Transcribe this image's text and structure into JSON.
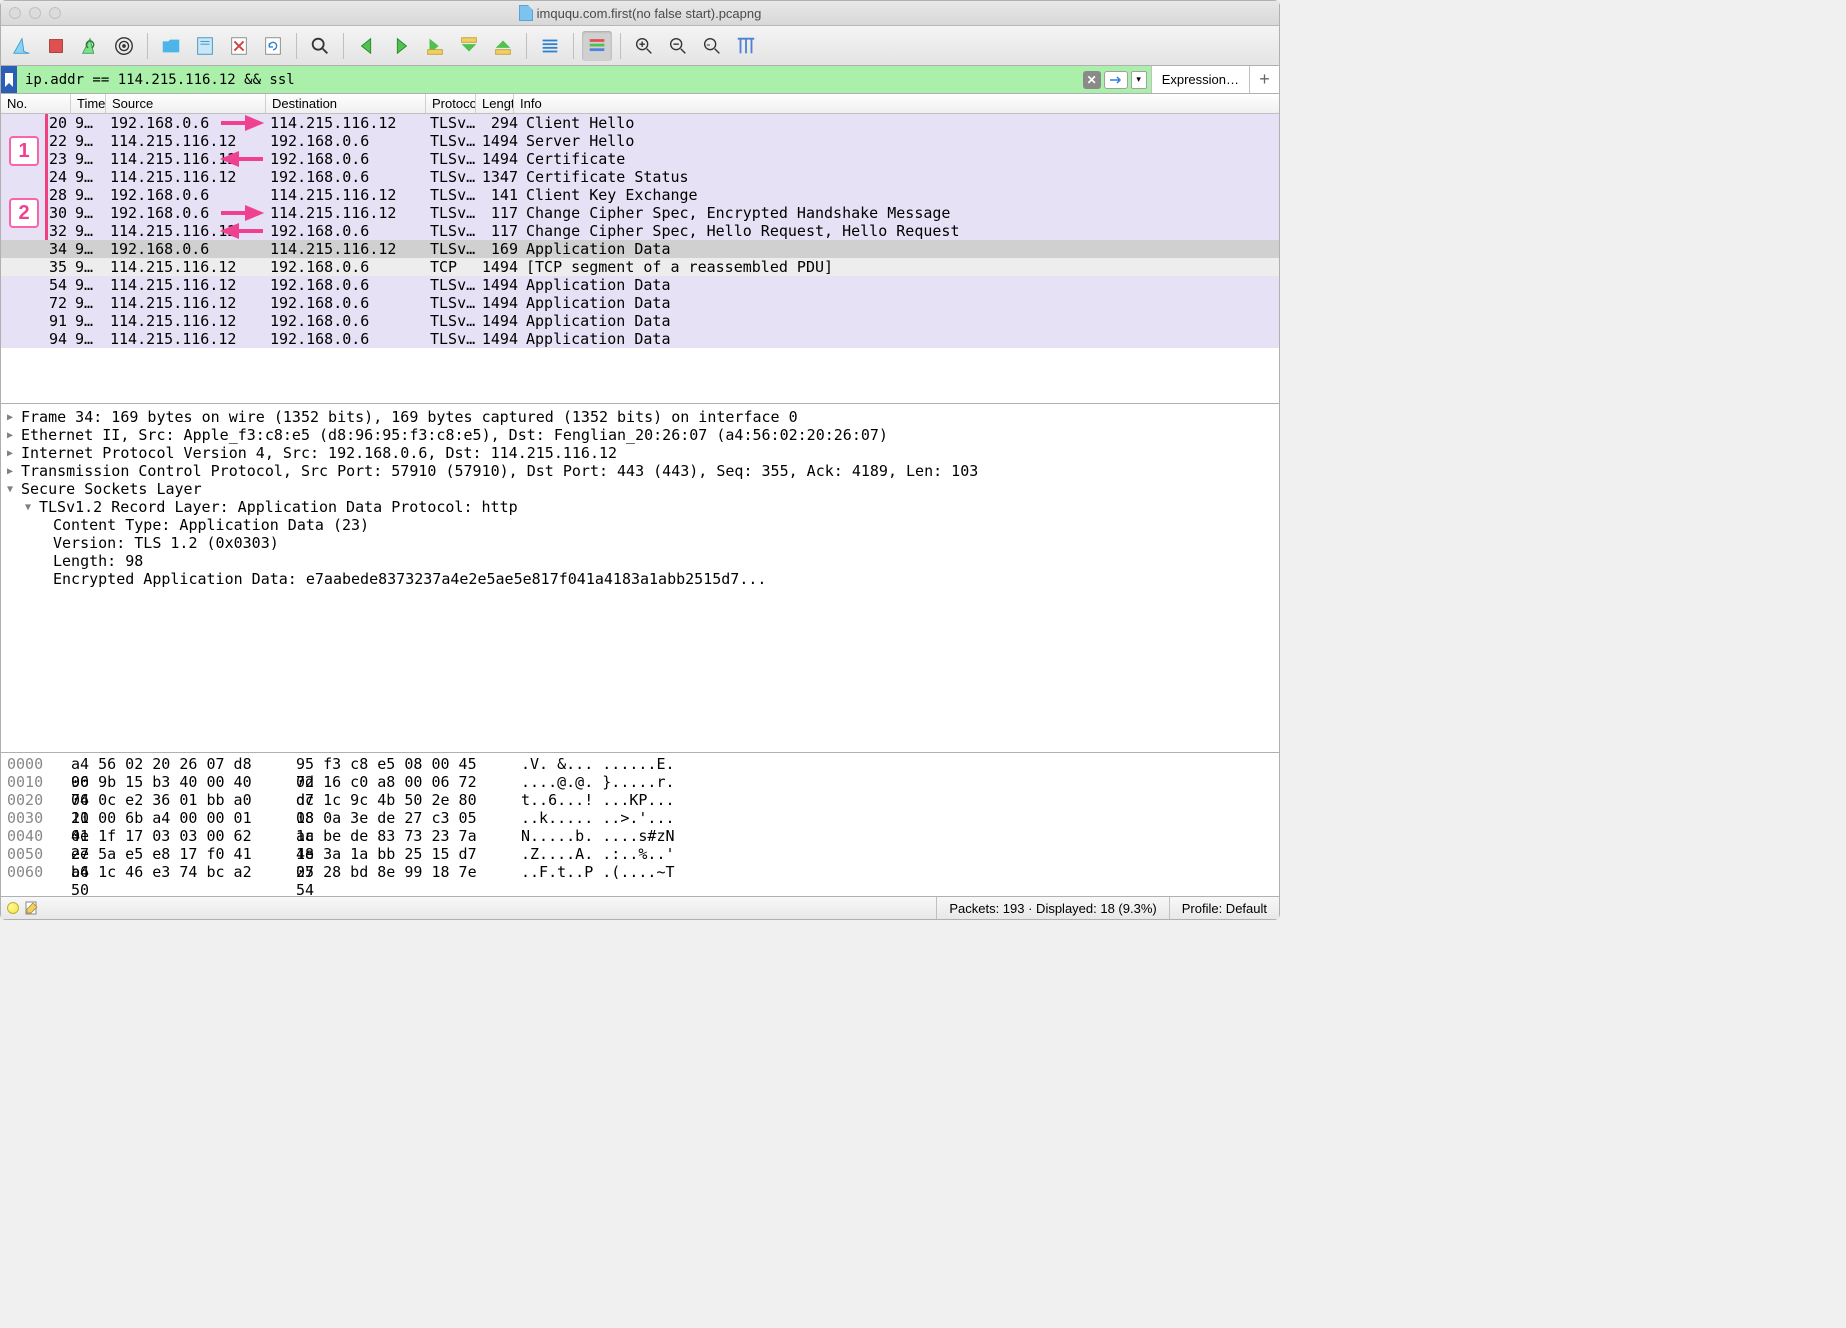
{
  "window": {
    "title": "imququ.com.first(no false start).pcapng"
  },
  "filter": {
    "value": "ip.addr == 114.215.116.12 && ssl",
    "expression_label": "Expression…"
  },
  "columns": {
    "no": "No.",
    "time": "Time",
    "source": "Source",
    "destination": "Destination",
    "protocol": "Protocol",
    "length": "Length",
    "info": "Info"
  },
  "column_widths": {
    "no": 70,
    "time": 35,
    "source": 160,
    "destination": 160,
    "protocol": 50,
    "length": 46
  },
  "annotations": {
    "badge1": "1",
    "badge2": "2",
    "arrow_color": "#f04090",
    "vline_color": "#ef4080"
  },
  "packets": [
    {
      "no": "20",
      "time": "9…",
      "src": "192.168.0.6",
      "dst": "114.215.116.12",
      "proto": "TLSv…",
      "len": "294",
      "info": "Client Hello",
      "cls": "purple",
      "group": 1,
      "arrow": "right"
    },
    {
      "no": "22",
      "time": "9…",
      "src": "114.215.116.12",
      "dst": "192.168.0.6",
      "proto": "TLSv…",
      "len": "1494",
      "info": "Server Hello",
      "cls": "purple",
      "group": 1
    },
    {
      "no": "23",
      "time": "9…",
      "src": "114.215.116.12",
      "dst": "192.168.0.6",
      "proto": "TLSv…",
      "len": "1494",
      "info": "Certificate",
      "cls": "purple",
      "group": 1,
      "arrow": "left"
    },
    {
      "no": "24",
      "time": "9…",
      "src": "114.215.116.12",
      "dst": "192.168.0.6",
      "proto": "TLSv…",
      "len": "1347",
      "info": "Certificate Status",
      "cls": "purple",
      "group": 1
    },
    {
      "no": "28",
      "time": "9…",
      "src": "192.168.0.6",
      "dst": "114.215.116.12",
      "proto": "TLSv…",
      "len": "141",
      "info": "Client Key Exchange",
      "cls": "purple",
      "group": 2
    },
    {
      "no": "30",
      "time": "9…",
      "src": "192.168.0.6",
      "dst": "114.215.116.12",
      "proto": "TLSv…",
      "len": "117",
      "info": "Change Cipher Spec, Encrypted Handshake Message",
      "cls": "purple",
      "group": 2,
      "arrow": "right"
    },
    {
      "no": "32",
      "time": "9…",
      "src": "114.215.116.12",
      "dst": "192.168.0.6",
      "proto": "TLSv…",
      "len": "117",
      "info": "Change Cipher Spec, Hello Request, Hello Request",
      "cls": "purple",
      "group": 2,
      "arrow": "left"
    },
    {
      "no": "34",
      "time": "9…",
      "src": "192.168.0.6",
      "dst": "114.215.116.12",
      "proto": "TLSv…",
      "len": "169",
      "info": "Application Data",
      "cls": "selected"
    },
    {
      "no": "35",
      "time": "9…",
      "src": "114.215.116.12",
      "dst": "192.168.0.6",
      "proto": "TCP",
      "len": "1494",
      "info": "[TCP segment of a reassembled PDU]",
      "cls": "gray"
    },
    {
      "no": "54",
      "time": "9…",
      "src": "114.215.116.12",
      "dst": "192.168.0.6",
      "proto": "TLSv…",
      "len": "1494",
      "info": "Application Data",
      "cls": "purple"
    },
    {
      "no": "72",
      "time": "9…",
      "src": "114.215.116.12",
      "dst": "192.168.0.6",
      "proto": "TLSv…",
      "len": "1494",
      "info": "Application Data",
      "cls": "purple"
    },
    {
      "no": "91",
      "time": "9…",
      "src": "114.215.116.12",
      "dst": "192.168.0.6",
      "proto": "TLSv…",
      "len": "1494",
      "info": "Application Data",
      "cls": "purple"
    },
    {
      "no": "94",
      "time": "9…",
      "src": "114.215.116.12",
      "dst": "192.168.0.6",
      "proto": "TLSv…",
      "len": "1494",
      "info": "Application Data",
      "cls": "purple"
    }
  ],
  "details": {
    "frame": "Frame 34: 169 bytes on wire (1352 bits), 169 bytes captured (1352 bits) on interface 0",
    "eth": "Ethernet II, Src: Apple_f3:c8:e5 (d8:96:95:f3:c8:e5), Dst: Fenglian_20:26:07 (a4:56:02:20:26:07)",
    "ip": "Internet Protocol Version 4, Src: 192.168.0.6, Dst: 114.215.116.12",
    "tcp": "Transmission Control Protocol, Src Port: 57910 (57910), Dst Port: 443 (443), Seq: 355, Ack: 4189, Len: 103",
    "ssl": "Secure Sockets Layer",
    "record": "TLSv1.2 Record Layer: Application Data Protocol: http",
    "ctype": "Content Type: Application Data (23)",
    "version": "Version: TLS 1.2 (0x0303)",
    "length": "Length: 98",
    "encdata": "Encrypted Application Data: e7aabede8373237a4e2e5ae5e817f041a4183a1abb2515d7..."
  },
  "hex": [
    {
      "off": "0000",
      "b1": "a4 56 02 20 26 07 d8 96",
      "b2": "95 f3 c8 e5 08 00 45 02",
      "asc": ".V. &... ......E."
    },
    {
      "off": "0010",
      "b1": "00 9b 15 b3 40 00 40 06",
      "b2": "7d 16 c0 a8 00 06 72 d7",
      "asc": "....@.@. }.....r."
    },
    {
      "off": "0020",
      "b1": "74 0c e2 36 01 bb a0 21",
      "b2": "dc 1c 9c 4b 50 2e 80 18",
      "asc": "t..6...! ...KP..."
    },
    {
      "off": "0030",
      "b1": "10 00 6b a4 00 00 01 01",
      "b2": "08 0a 3e de 27 c3 05 1c",
      "asc": "..k..... ..>.'..."
    },
    {
      "off": "0040",
      "b1": "4e 1f 17 03 03 00 62 e7",
      "b2": "aa be de 83 73 23 7a 4e",
      "asc": "N.....b. ....s#zN"
    },
    {
      "off": "0050",
      "b1": "2e 5a e5 e8 17 f0 41 a4",
      "b2": "18 3a 1a bb 25 15 d7 27",
      "asc": ".Z....A. .:..%..'"
    },
    {
      "off": "0060",
      "b1": "b6 1c 46 e3 74 bc a2 50",
      "b2": "05 28 bd 8e 99 18 7e 54",
      "asc": "..F.t..P .(....~T"
    }
  ],
  "statusbar": {
    "packets": "Packets: 193 · Displayed: 18 (9.3%)",
    "profile": "Profile: Default"
  },
  "colors": {
    "filter_valid_bg": "#aaf0aa",
    "row_purple": "#e7e1f5",
    "row_selected": "#d0d0d0",
    "row_gray": "#ededed"
  }
}
